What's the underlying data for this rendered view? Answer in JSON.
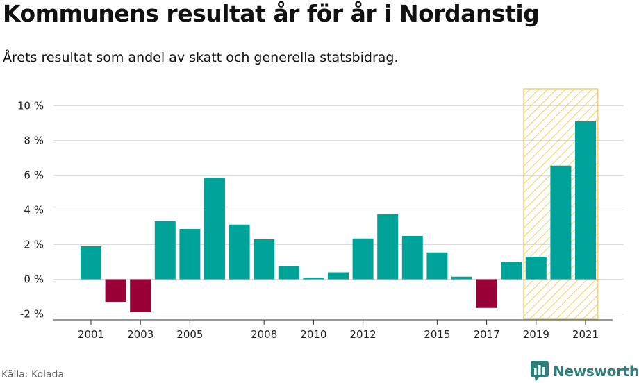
{
  "header": {
    "title": "Kommunens resultat år för år i Nordanstig",
    "subtitle": "Årets resultat som andel av skatt och generella statsbidrag."
  },
  "footer": {
    "source": "Källa: Kolada",
    "brand": "Newsworthy",
    "brand_icon": "newsworthy-logo-icon"
  },
  "colors": {
    "positive": "#00a39a",
    "negative": "#990037",
    "highlight": "#f5c955",
    "grid": "#dddddd",
    "axis": "#333333"
  },
  "chart_data": {
    "type": "bar",
    "categories": [
      "2001",
      "2002",
      "2003",
      "2004",
      "2005",
      "2006",
      "2007",
      "2008",
      "2009",
      "2010",
      "2011",
      "2012",
      "2013",
      "2014",
      "2015",
      "2016",
      "2017",
      "2018",
      "2019",
      "2020",
      "2021"
    ],
    "values": [
      1.9,
      -1.3,
      -1.9,
      3.35,
      2.9,
      5.85,
      3.15,
      2.3,
      0.75,
      0.1,
      0.4,
      2.35,
      3.75,
      2.5,
      1.55,
      0.15,
      -1.65,
      1.0,
      1.3,
      6.55,
      9.1
    ],
    "x_tick_labels": [
      "2001",
      "2003",
      "2005",
      "2008",
      "2010",
      "2012",
      "2015",
      "2017",
      "2019",
      "2021"
    ],
    "y_ticks": [
      -2,
      0,
      2,
      4,
      6,
      8,
      10
    ],
    "y_tick_labels": [
      "-2 %",
      "0 %",
      "2 %",
      "4 %",
      "6 %",
      "8 %",
      "10 %"
    ],
    "ylim": [
      -2.1,
      10.5
    ],
    "highlight_range": [
      "2019",
      "2021"
    ],
    "grid": true
  }
}
